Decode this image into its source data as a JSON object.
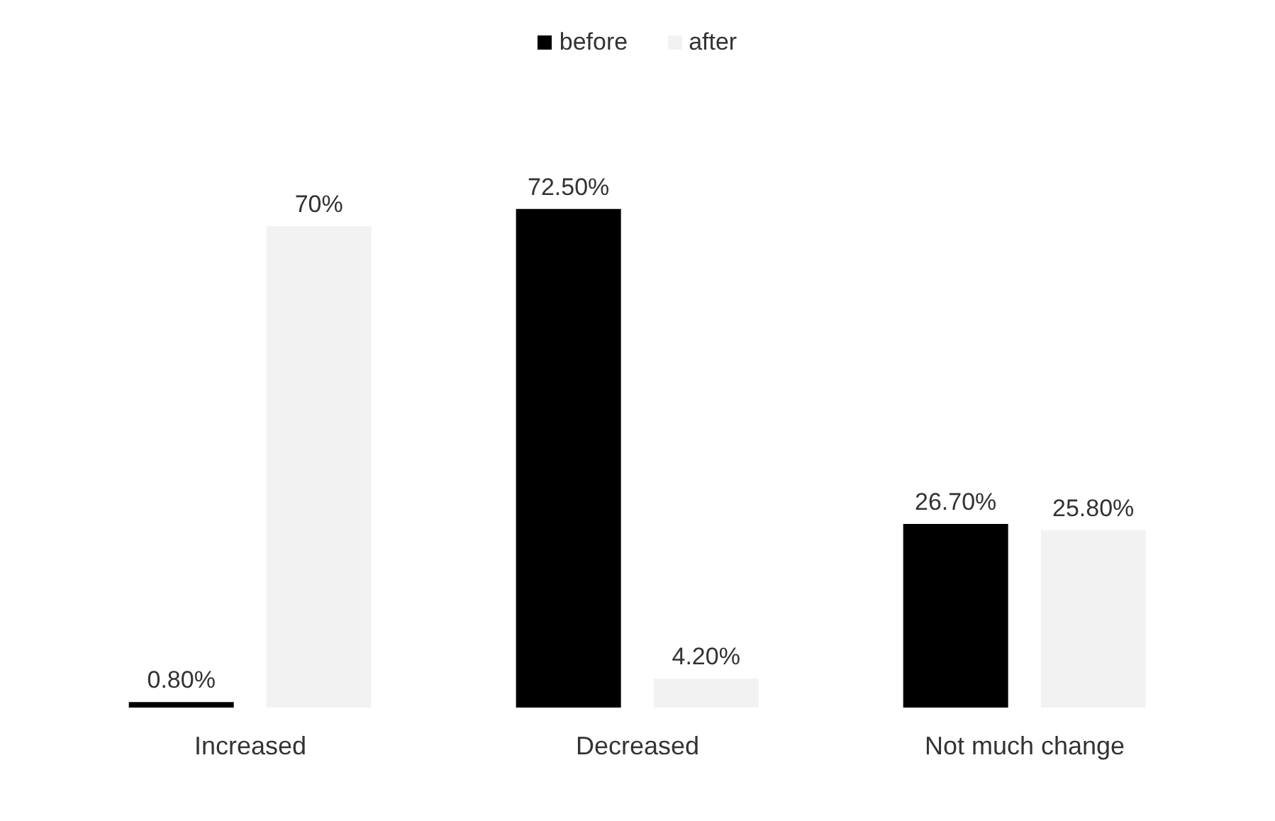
{
  "chart_data": {
    "type": "bar",
    "categories": [
      "Increased",
      "Decreased",
      "Not much change"
    ],
    "series": [
      {
        "name": "before",
        "color": "#000000",
        "values": [
          0.8,
          72.5,
          26.7
        ],
        "value_labels": [
          "0.80%",
          "72.50%",
          "26.70%"
        ]
      },
      {
        "name": "after",
        "color": "#f2f2f2",
        "values": [
          70,
          4.2,
          25.8
        ],
        "value_labels": [
          "70%",
          "4.20%",
          "25.80%"
        ]
      }
    ],
    "legend": "top",
    "grid": false
  }
}
